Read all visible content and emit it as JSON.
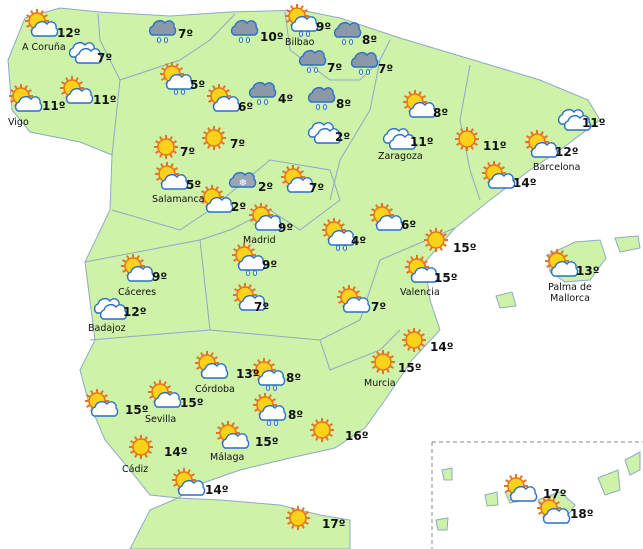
{
  "places": [
    {
      "temp": "12º",
      "name": "A Coruña"
    },
    {
      "temp": "7º"
    },
    {
      "temp": "11º",
      "name": "Vigo"
    },
    {
      "temp": "11º"
    },
    {
      "temp": "7º"
    },
    {
      "temp": "10º"
    },
    {
      "temp": "9º",
      "name": "Bilbao"
    },
    {
      "temp": "8º"
    },
    {
      "temp": "7º"
    },
    {
      "temp": "7º"
    },
    {
      "temp": "5º"
    },
    {
      "temp": "6º"
    },
    {
      "temp": "4º"
    },
    {
      "temp": "8º"
    },
    {
      "temp": "2º"
    },
    {
      "temp": "8º"
    },
    {
      "temp": "11º",
      "name": "Zaragoza"
    },
    {
      "temp": "11º"
    },
    {
      "temp": "7º"
    },
    {
      "temp": "7º"
    },
    {
      "temp": "11º"
    },
    {
      "temp": "12º",
      "name": "Barcelona"
    },
    {
      "temp": "5º",
      "name": "Salamanca"
    },
    {
      "temp": "2º"
    },
    {
      "temp": "7º"
    },
    {
      "temp": "2º"
    },
    {
      "temp": "14º"
    },
    {
      "temp": "9º",
      "name": "Madrid"
    },
    {
      "temp": "4º"
    },
    {
      "temp": "6º"
    },
    {
      "temp": "15º"
    },
    {
      "temp": "9º"
    },
    {
      "temp": "9º",
      "name": "Cáceres"
    },
    {
      "temp": "15º",
      "name": "Valencia"
    },
    {
      "temp": "13º",
      "name": "Palma de Mallorca"
    },
    {
      "temp": "12º",
      "name": "Badajoz"
    },
    {
      "temp": "7º"
    },
    {
      "temp": "7º"
    },
    {
      "temp": "14º"
    },
    {
      "temp": "13º",
      "name": "Córdoba"
    },
    {
      "temp": "8º"
    },
    {
      "temp": "15º",
      "name": "Murcia"
    },
    {
      "temp": "15º"
    },
    {
      "temp": "15º",
      "name": "Sevilla"
    },
    {
      "temp": "8º"
    },
    {
      "temp": "14º",
      "name": "Cádiz"
    },
    {
      "temp": "15º",
      "name": "Málaga"
    },
    {
      "temp": "16º"
    },
    {
      "temp": "14º"
    },
    {
      "temp": "17º"
    },
    {
      "temp": "17º"
    },
    {
      "temp": "18º"
    }
  ]
}
